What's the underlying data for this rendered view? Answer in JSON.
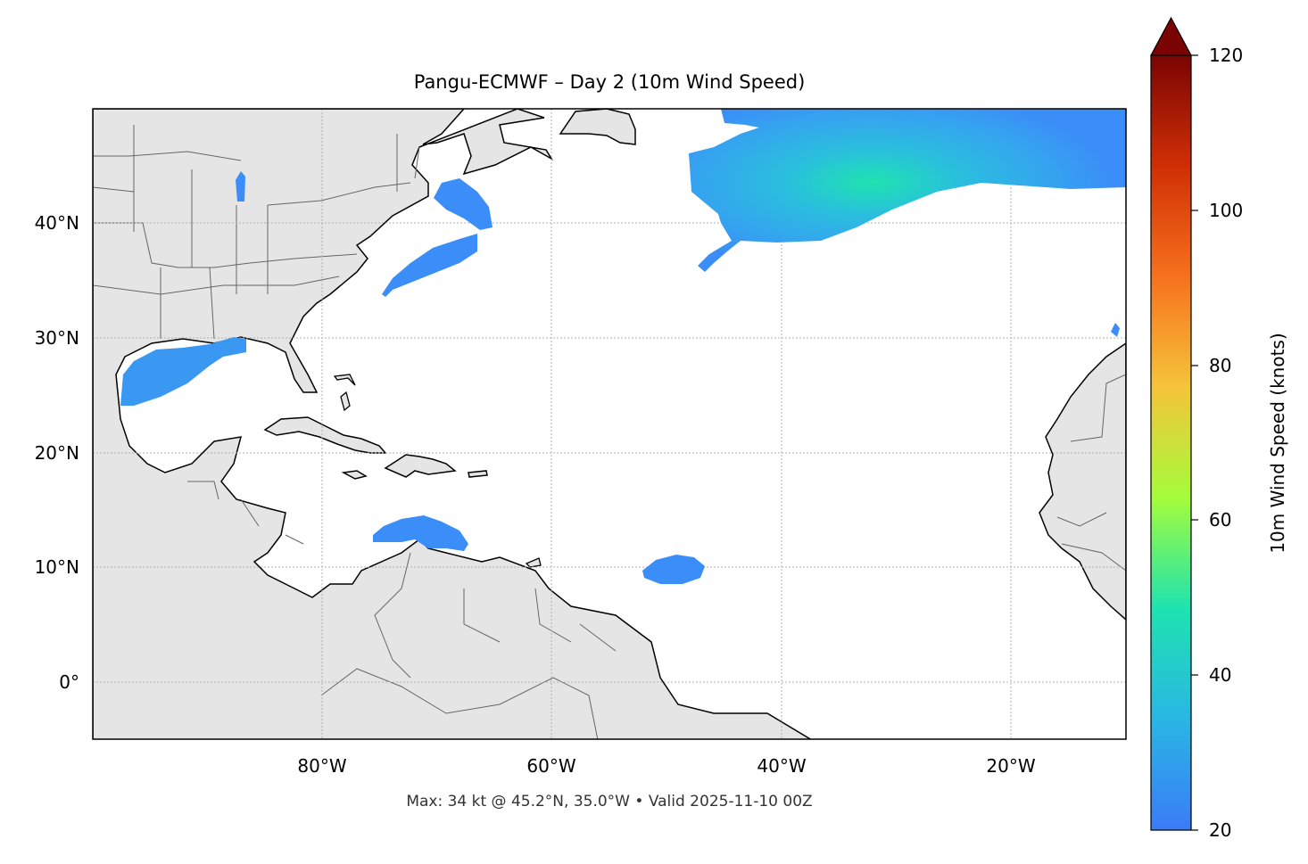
{
  "title": "Pangu-ECMWF – Day 2 (10m Wind Speed)",
  "footer": "Max: 34 kt @ 45.2°N, 35.0°W • Valid 2025-11-10 00Z",
  "map": {
    "extent": {
      "lon_min": -100,
      "lon_max": -10,
      "lat_min": -5,
      "lat_max": 50
    },
    "lon_ticks": [
      {
        "value": -80,
        "label": "80°W"
      },
      {
        "value": -60,
        "label": "60°W"
      },
      {
        "value": -40,
        "label": "40°W"
      },
      {
        "value": -20,
        "label": "20°W"
      }
    ],
    "lat_ticks": [
      {
        "value": 40,
        "label": "40°N"
      },
      {
        "value": 30,
        "label": "30°N"
      },
      {
        "value": 20,
        "label": "20°N"
      },
      {
        "value": 10,
        "label": "10°N"
      },
      {
        "value": 0,
        "label": "0°"
      }
    ],
    "gridlines": true,
    "land_color": "#e5e5e5",
    "ocean_color": "#ffffff"
  },
  "colorbar": {
    "label": "10m Wind Speed (knots)",
    "min": 20,
    "max": 120,
    "extend": "max",
    "ticks": [
      {
        "value": 20,
        "label": "20"
      },
      {
        "value": 40,
        "label": "40"
      },
      {
        "value": 60,
        "label": "60"
      },
      {
        "value": 80,
        "label": "80"
      },
      {
        "value": 100,
        "label": "100"
      },
      {
        "value": 120,
        "label": "120"
      }
    ],
    "colormap": "turbo",
    "colors": [
      "#3b7bf7",
      "#29b6e4",
      "#1ee3b0",
      "#a4fc3b",
      "#f5c43a",
      "#f6711d",
      "#d02f05",
      "#7a0403"
    ]
  },
  "max_point": {
    "speed_kt": 34,
    "lat": 45.2,
    "lon": -35.0
  },
  "wind_regions": [
    {
      "name": "north-atlantic-jet",
      "lon_range": [
        -47,
        -10
      ],
      "lat_range": [
        33,
        50
      ],
      "peak_kt": 34
    },
    {
      "name": "gulf-of-mexico",
      "lon_range": [
        -97,
        -83
      ],
      "lat_range": [
        24.5,
        30
      ],
      "peak_kt": 25
    },
    {
      "name": "gulf-of-maine",
      "lon_range": [
        -70,
        -63
      ],
      "lat_range": [
        38.5,
        44.5
      ],
      "peak_kt": 23
    },
    {
      "name": "off-carolinas",
      "lon_range": [
        -74,
        -66
      ],
      "lat_range": [
        33.5,
        39
      ],
      "peak_kt": 23
    },
    {
      "name": "caribbean-sea",
      "lon_range": [
        -76,
        -67
      ],
      "lat_range": [
        11,
        14.5
      ],
      "peak_kt": 23
    },
    {
      "name": "tropical-atlantic",
      "lon_range": [
        -54,
        -48
      ],
      "lat_range": [
        8.5,
        11
      ],
      "peak_kt": 22
    },
    {
      "name": "lake-michigan",
      "lon_range": [
        -87.5,
        -86.5
      ],
      "lat_range": [
        42,
        46
      ],
      "peak_kt": 22
    }
  ]
}
